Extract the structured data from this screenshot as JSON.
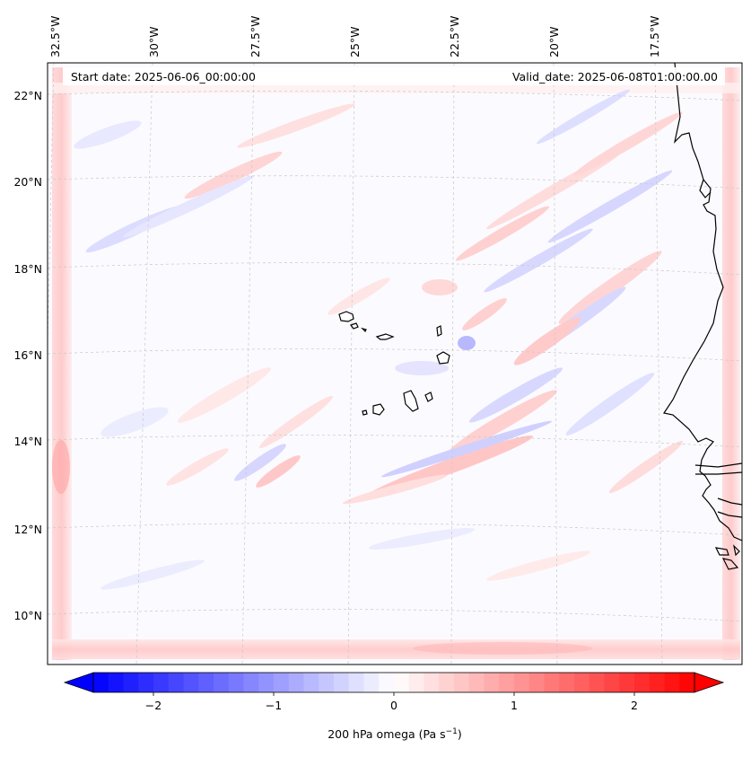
{
  "header": {
    "start_date": "Start date: 2025-06-06_00:00:00",
    "valid_date": "Valid_date: 2025-06-08T01:00:00.00"
  },
  "map": {
    "projection": "lambert-conformal",
    "extent": {
      "lon_min": -33,
      "lon_max": -15.5,
      "lat_min": 9,
      "lat_max": 22.7
    },
    "longitude_labels": [
      "32.5°W",
      "30°W",
      "27.5°W",
      "25°W",
      "22.5°W",
      "20°W",
      "17.5°W"
    ],
    "latitude_labels": [
      "22°N",
      "20°N",
      "18°N",
      "16°N",
      "14°N",
      "12°N",
      "10°N"
    ],
    "gridlines": true,
    "features": [
      "cape-verde-islands",
      "west-africa-coastline"
    ]
  },
  "colorbar": {
    "label": "200 hPa omega (Pa s",
    "label_superscript": "−1",
    "label_close": ")",
    "ticks": [
      {
        "value": -2,
        "label": "−2"
      },
      {
        "value": -1,
        "label": "−1"
      },
      {
        "value": 0,
        "label": "0"
      },
      {
        "value": 1,
        "label": "1"
      },
      {
        "value": 2,
        "label": "2"
      }
    ],
    "range": [
      -2.5,
      2.5
    ],
    "extend": "both",
    "colormap": "bwr",
    "colors": {
      "low": "#0000ff",
      "mid": "#ffffff",
      "high": "#ff0000"
    }
  }
}
